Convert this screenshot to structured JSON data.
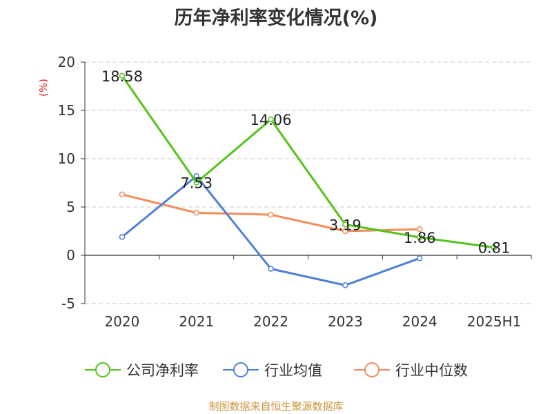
{
  "chart_data": {
    "type": "line",
    "title": "历年净利率变化情况(%)",
    "ylabel": "(%)",
    "xlabel": "",
    "categories": [
      "2020",
      "2021",
      "2022",
      "2023",
      "2024",
      "2025H1"
    ],
    "ylim": [
      -5,
      20
    ],
    "yticks": [
      -5,
      0,
      5,
      10,
      15,
      20
    ],
    "grid": true,
    "legend_position": "bottom",
    "series": [
      {
        "name": "公司净利率",
        "color": "#52c41a",
        "values": [
          18.58,
          7.53,
          14.06,
          3.19,
          1.86,
          0.81
        ],
        "labels": [
          "18.58",
          "7.53",
          "14.06",
          "3.19",
          "1.86",
          "0.81"
        ]
      },
      {
        "name": "行业均值",
        "color": "#4e7fd9",
        "values": [
          1.9,
          8.2,
          -1.4,
          -3.1,
          -0.3,
          null
        ]
      },
      {
        "name": "行业中位数",
        "color": "#f28c5a",
        "values": [
          6.3,
          4.4,
          4.2,
          2.5,
          2.7,
          null
        ]
      }
    ],
    "source": "制图数据来自恒生聚源数据库"
  }
}
